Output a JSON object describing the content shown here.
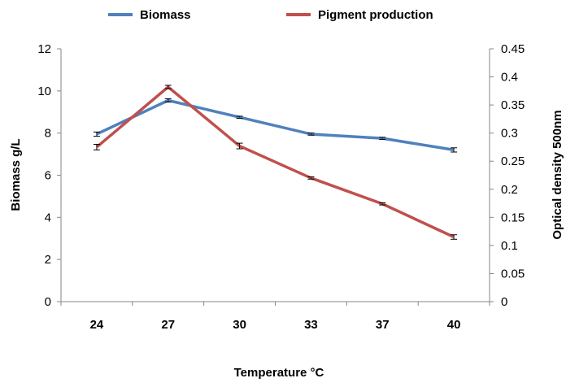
{
  "chart_data": {
    "type": "line",
    "categories": [
      "24",
      "27",
      "30",
      "33",
      "37",
      "40"
    ],
    "xlabel": "Temperature °C",
    "ylabel": "Biomass g/L",
    "y2label": "Optical density 500nm",
    "ylim": [
      0,
      12
    ],
    "ytick_labels": [
      "0",
      "2",
      "4",
      "6",
      "8",
      "10",
      "12"
    ],
    "y2lim": [
      0,
      0.45
    ],
    "y2tick_labels": [
      "0",
      "0.05",
      "0.1",
      "0.15",
      "0.2",
      "0.25",
      "0.3",
      "0.35",
      "0.4",
      "0.45"
    ],
    "grid": false,
    "legend_position": "top",
    "series": [
      {
        "name": "Biomass",
        "axis": "left",
        "color": "#4F81BD",
        "values": [
          7.95,
          9.55,
          8.75,
          7.95,
          7.75,
          7.2
        ],
        "errors": [
          0.1,
          0.08,
          0.05,
          0.05,
          0.05,
          0.1
        ]
      },
      {
        "name": "Pigment production",
        "axis": "right",
        "color": "#C0504D",
        "values": [
          0.275,
          0.382,
          0.277,
          0.22,
          0.174,
          0.115
        ],
        "errors": [
          0.005,
          0.003,
          0.005,
          0.002,
          0.002,
          0.004
        ]
      }
    ]
  }
}
